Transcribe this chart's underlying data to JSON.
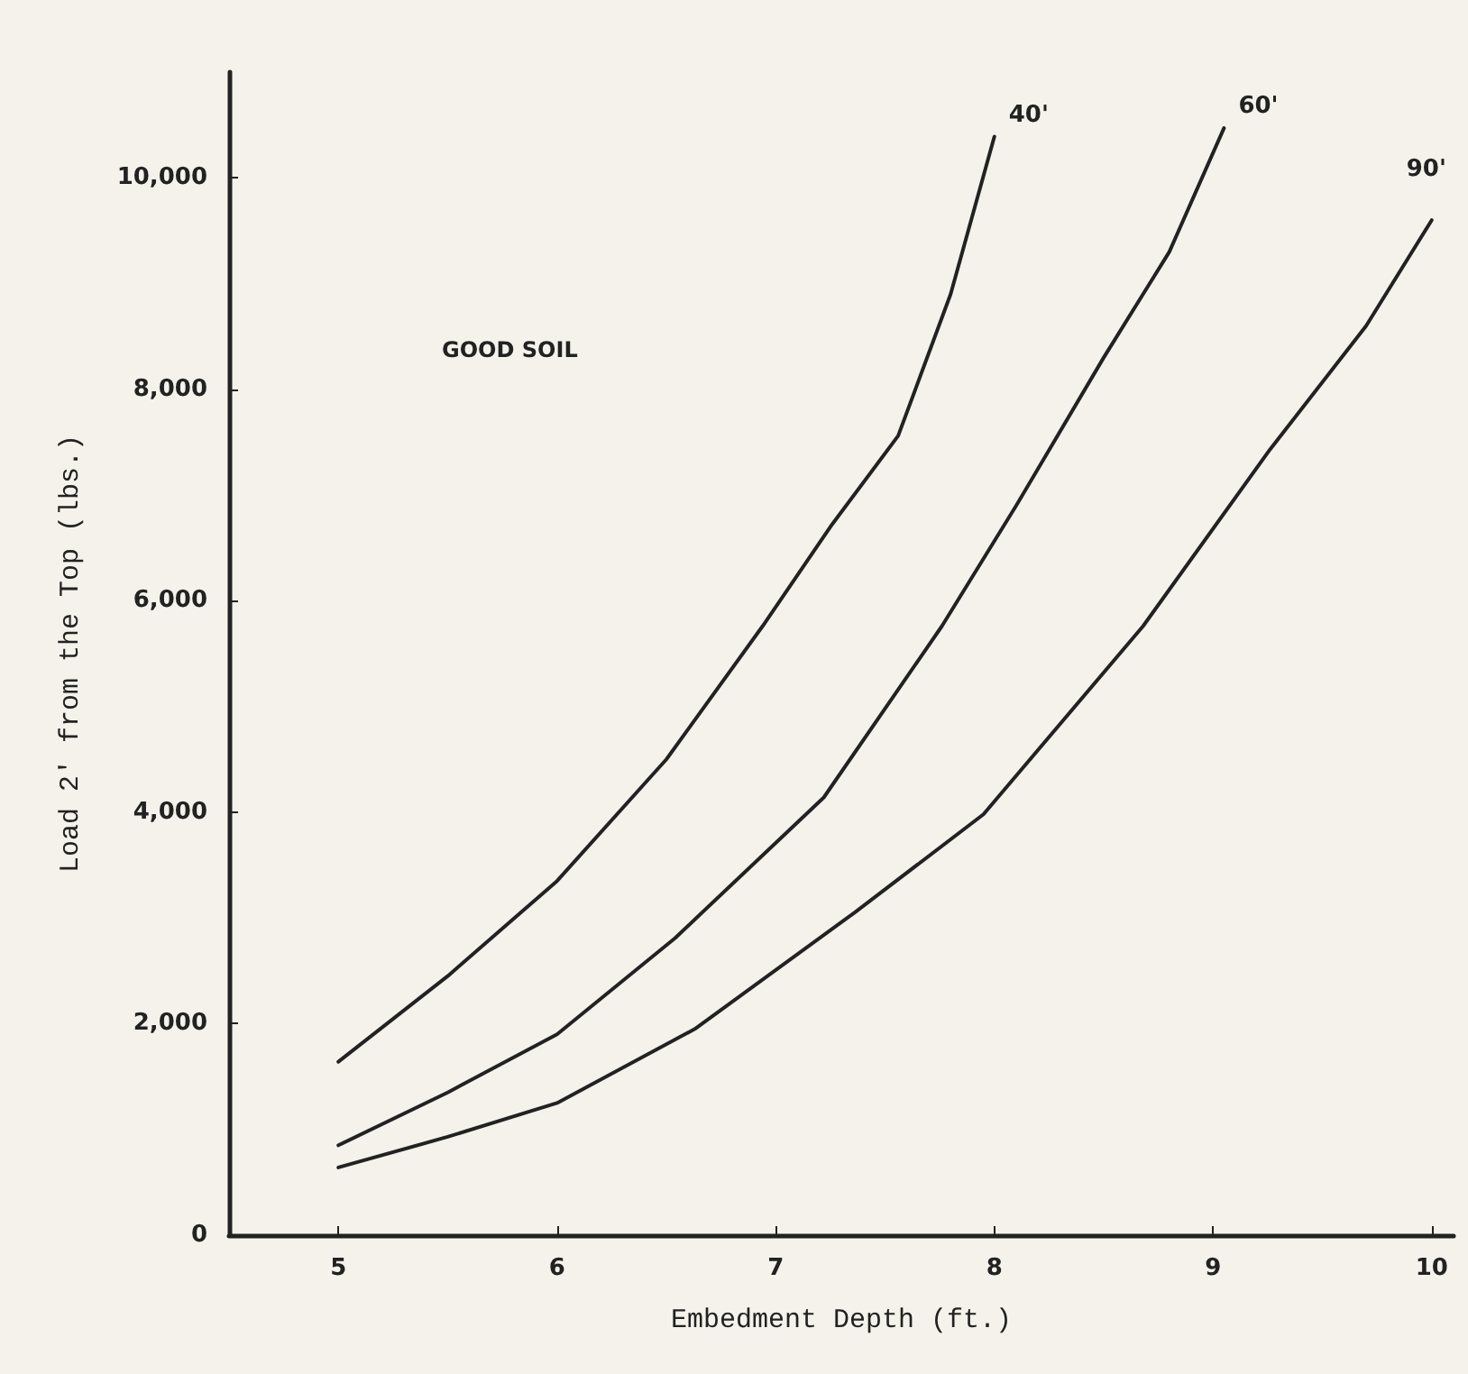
{
  "chart_data": {
    "type": "line",
    "xlabel": "Embedment Depth (ft.)",
    "ylabel": "Load 2' from the Top (lbs.)",
    "annotations": [
      "GOOD SOIL"
    ],
    "series": [
      {
        "name": "40'",
        "color": "#222222",
        "x": [
          5,
          5.5,
          6,
          6.5,
          6.94,
          7.25,
          7.56,
          7.8,
          8.0
        ],
        "values": [
          1640,
          2450,
          3350,
          4500,
          5760,
          6700,
          7560,
          8900,
          10390
        ]
      },
      {
        "name": "60'",
        "color": "#222222",
        "x": [
          5,
          5.5,
          6,
          6.54,
          7.22,
          7.76,
          8.1,
          8.5,
          8.8,
          9.05
        ],
        "values": [
          850,
          1350,
          1900,
          2810,
          4140,
          5760,
          6900,
          8300,
          9300,
          10470
        ]
      },
      {
        "name": "90'",
        "color": "#222222",
        "x": [
          5,
          5.5,
          6,
          6.63,
          7.36,
          7.95,
          8.68,
          9.26,
          9.7,
          10
        ],
        "values": [
          640,
          930,
          1250,
          1950,
          3050,
          3980,
          5760,
          7430,
          8600,
          9600
        ]
      }
    ],
    "xlim": [
      4.5,
      10.1
    ],
    "ylim": [
      0,
      11000
    ],
    "xticks": [
      5,
      6,
      7,
      8,
      9,
      10
    ],
    "yticks": [
      0,
      {
        "value": 2000,
        "label": "2,000"
      },
      {
        "value": 4000,
        "label": "4,000"
      },
      {
        "value": 6000,
        "label": "6,000"
      },
      {
        "value": 8000,
        "label": "8,000"
      },
      {
        "value": 10000,
        "label": "10,000"
      }
    ],
    "grid": false,
    "legend": false,
    "marker": "none",
    "line_style": "solid"
  }
}
